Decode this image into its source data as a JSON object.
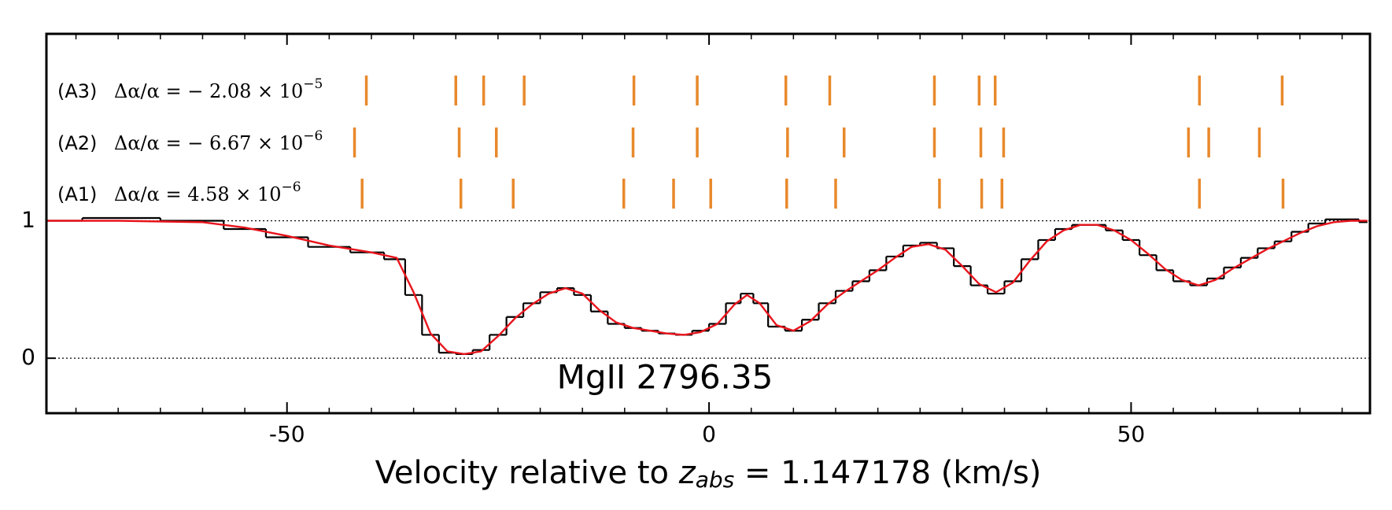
{
  "chart_data": {
    "type": "spectrum",
    "x": [
      -78.5,
      -70,
      -60,
      -55,
      -50,
      -45,
      -40,
      -37,
      -35,
      -33,
      -31,
      -29,
      -27,
      -25,
      -23,
      -21,
      -19,
      -17,
      -15,
      -13,
      -11,
      -9,
      -7,
      -5,
      -3,
      -1,
      1,
      3,
      4.5,
      6,
      8,
      10,
      12,
      14,
      16,
      18,
      20,
      22,
      24,
      26,
      28,
      30,
      32,
      34,
      36,
      38,
      40,
      42,
      44,
      46,
      48,
      50,
      52,
      54,
      56,
      58,
      60,
      62,
      64,
      66,
      68,
      70,
      72,
      74,
      76,
      78
    ],
    "series": [
      {
        "color": "#000000",
        "style": "step",
        "values": [
          1.0,
          1.02,
          1.0,
          0.94,
          0.88,
          0.81,
          0.77,
          0.72,
          0.46,
          0.17,
          0.04,
          0.03,
          0.06,
          0.17,
          0.3,
          0.4,
          0.48,
          0.51,
          0.46,
          0.34,
          0.25,
          0.22,
          0.2,
          0.18,
          0.17,
          0.2,
          0.25,
          0.4,
          0.47,
          0.4,
          0.23,
          0.2,
          0.28,
          0.4,
          0.49,
          0.56,
          0.64,
          0.74,
          0.82,
          0.84,
          0.8,
          0.67,
          0.53,
          0.47,
          0.56,
          0.72,
          0.86,
          0.94,
          0.97,
          0.97,
          0.93,
          0.86,
          0.75,
          0.64,
          0.56,
          0.53,
          0.58,
          0.66,
          0.73,
          0.8,
          0.85,
          0.92,
          0.98,
          1.01,
          1.01,
          0.99
        ]
      },
      {
        "color": "#e8141c",
        "style": "line",
        "values": [
          1.0,
          1.0,
          0.99,
          0.95,
          0.89,
          0.82,
          0.77,
          0.73,
          0.48,
          0.18,
          0.05,
          0.03,
          0.05,
          0.16,
          0.29,
          0.39,
          0.47,
          0.51,
          0.47,
          0.35,
          0.26,
          0.22,
          0.2,
          0.18,
          0.17,
          0.19,
          0.25,
          0.39,
          0.46,
          0.4,
          0.24,
          0.2,
          0.27,
          0.39,
          0.48,
          0.56,
          0.64,
          0.73,
          0.81,
          0.83,
          0.79,
          0.67,
          0.54,
          0.48,
          0.55,
          0.71,
          0.85,
          0.93,
          0.97,
          0.97,
          0.93,
          0.86,
          0.76,
          0.65,
          0.57,
          0.53,
          0.57,
          0.65,
          0.72,
          0.79,
          0.85,
          0.91,
          0.96,
          0.99,
          1.0,
          1.0
        ]
      }
    ],
    "components": [
      {
        "label": "(A3)",
        "text": "Δα/α = − 2.08 × 10",
        "exponent": "−5",
        "velocities": [
          -40.6,
          -30.0,
          -26.7,
          -21.9,
          -8.9,
          -1.4,
          9.1,
          14.3,
          26.7,
          32.0,
          33.9,
          58.1,
          67.9
        ]
      },
      {
        "label": "(A2)",
        "text": "Δα/α = − 6.67 × 10",
        "exponent": "−6",
        "velocities": [
          -42.0,
          -29.6,
          -25.2,
          -9.0,
          -1.4,
          9.3,
          16.0,
          26.7,
          32.2,
          34.9,
          56.8,
          59.2,
          65.2
        ]
      },
      {
        "label": "(A1)",
        "text": "Δα/α = 4.58 × 10",
        "exponent": "−6",
        "velocities": [
          -41.1,
          -29.4,
          -23.2,
          -10.1,
          -4.2,
          0.2,
          9.2,
          15.0,
          27.3,
          32.3,
          34.7,
          58.1,
          68.0
        ]
      }
    ],
    "component_color": "#e8892b",
    "annotation": "MgII 2796.35",
    "xlabel": {
      "prefix": "Velocity relative to ",
      "var": "z",
      "sub": "abs",
      "suffix": " = 1.147178 (km/s)"
    },
    "xlim": [
      -78.5,
      78.3
    ],
    "ylim": [
      -0.4,
      2.36
    ],
    "xticks": [
      -50,
      0,
      50
    ],
    "xminorticks": [
      -75,
      -70,
      -65,
      -60,
      -55,
      -45,
      -40,
      -35,
      -30,
      -25,
      -20,
      -15,
      -10,
      -5,
      5,
      10,
      15,
      20,
      25,
      30,
      35,
      40,
      45,
      55,
      60,
      65,
      70,
      75
    ],
    "yticks": [
      0,
      1
    ],
    "grid": true
  }
}
